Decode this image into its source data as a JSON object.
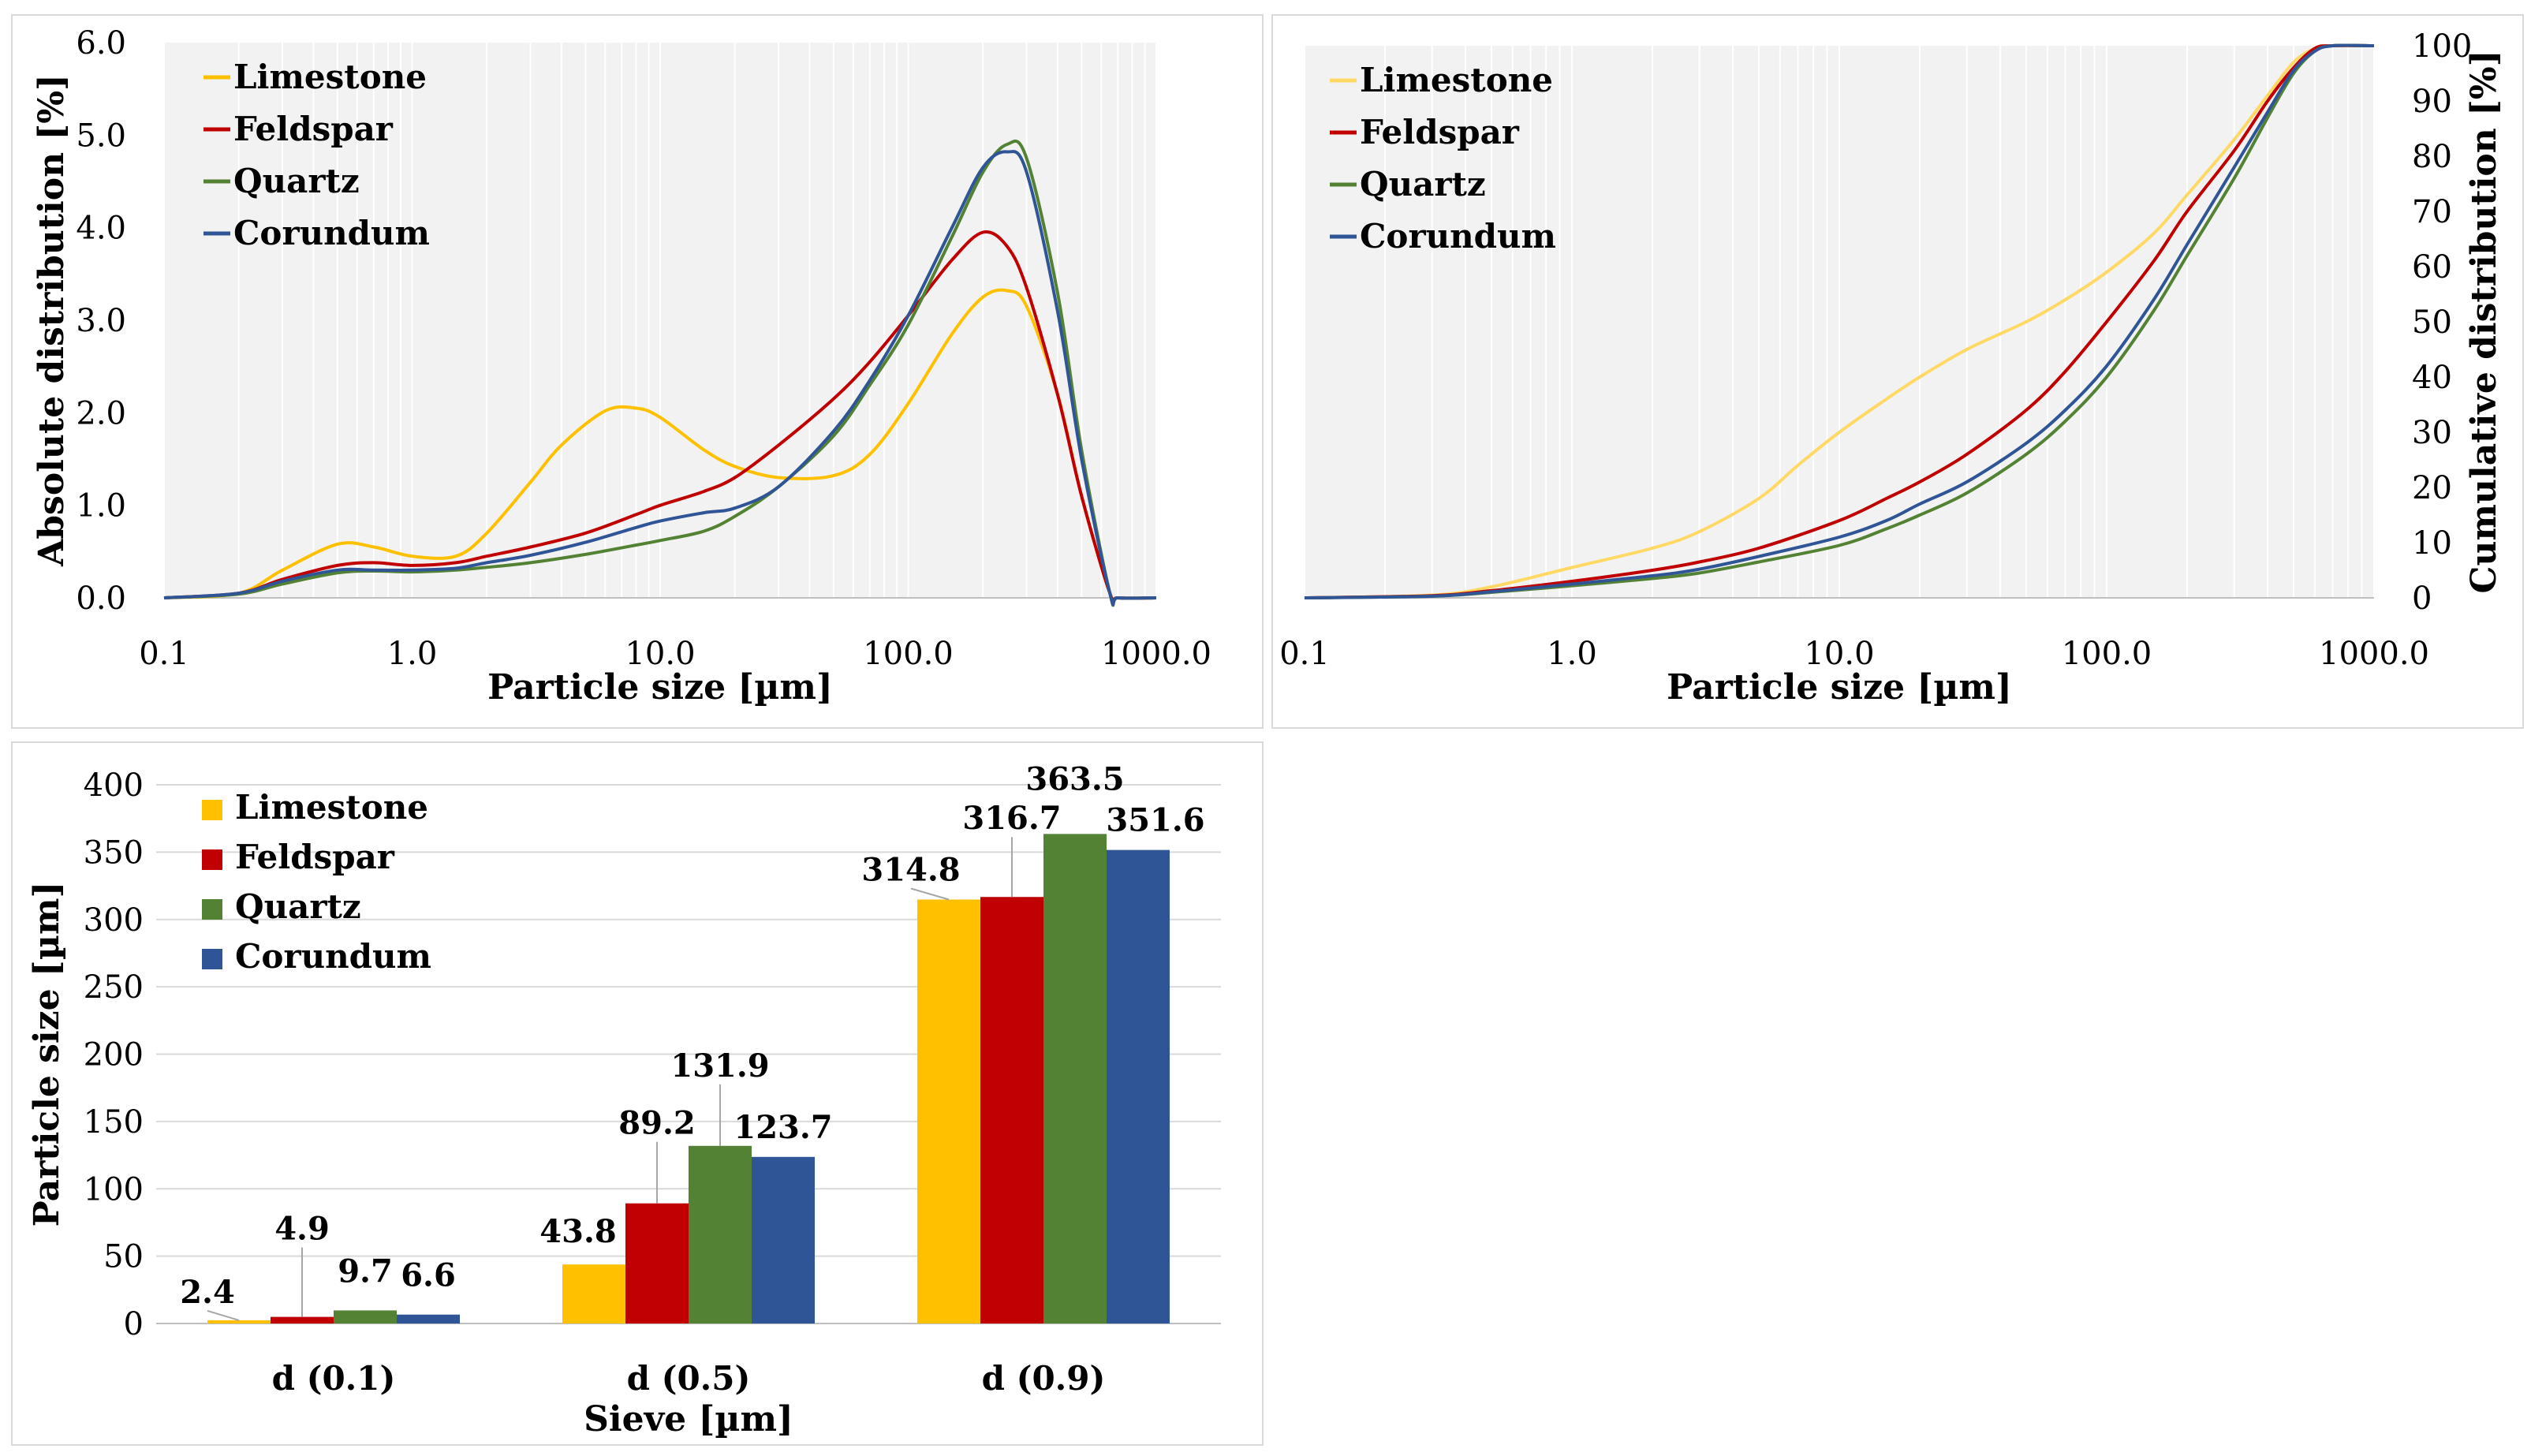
{
  "chart_data": [
    {
      "type": "line",
      "xscale": "log",
      "xlabel": "Particle size [µm]",
      "ylabel": "Absolute distribution [%]",
      "xlim": [
        0.1,
        1000.0
      ],
      "ylim": [
        0.0,
        6.0
      ],
      "x_ticks": [
        "0.1",
        "1.0",
        "10.0",
        "100.0",
        "1000.0"
      ],
      "y_ticks": [
        "0.0",
        "1.0",
        "2.0",
        "3.0",
        "4.0",
        "5.0",
        "6.0"
      ],
      "grid": "vertical",
      "legend_position": "top-left",
      "series": [
        {
          "name": "Limestone",
          "color": "#FFC000",
          "points": [
            [
              0.1,
              0
            ],
            [
              0.2,
              0.05
            ],
            [
              0.3,
              0.3
            ],
            [
              0.5,
              0.58
            ],
            [
              0.7,
              0.55
            ],
            [
              1.0,
              0.45
            ],
            [
              1.5,
              0.45
            ],
            [
              2.0,
              0.7
            ],
            [
              3.0,
              1.25
            ],
            [
              4.0,
              1.65
            ],
            [
              6.0,
              2.02
            ],
            [
              8.0,
              2.05
            ],
            [
              10.0,
              1.95
            ],
            [
              15.0,
              1.6
            ],
            [
              20.0,
              1.42
            ],
            [
              30.0,
              1.3
            ],
            [
              50.0,
              1.32
            ],
            [
              70.0,
              1.55
            ],
            [
              100.0,
              2.1
            ],
            [
              150.0,
              2.85
            ],
            [
              200.0,
              3.25
            ],
            [
              250.0,
              3.32
            ],
            [
              300.0,
              3.15
            ],
            [
              400.0,
              2.2
            ],
            [
              500.0,
              1.1
            ],
            [
              650.0,
              0.05
            ],
            [
              700.0,
              0
            ],
            [
              1000.0,
              0
            ]
          ]
        },
        {
          "name": "Feldspar",
          "color": "#C00000",
          "points": [
            [
              0.1,
              0
            ],
            [
              0.2,
              0.05
            ],
            [
              0.3,
              0.2
            ],
            [
              0.5,
              0.35
            ],
            [
              0.7,
              0.38
            ],
            [
              1.0,
              0.35
            ],
            [
              1.5,
              0.38
            ],
            [
              2.0,
              0.45
            ],
            [
              3.0,
              0.55
            ],
            [
              5.0,
              0.7
            ],
            [
              8.0,
              0.9
            ],
            [
              10.0,
              1.0
            ],
            [
              15.0,
              1.15
            ],
            [
              20.0,
              1.3
            ],
            [
              30.0,
              1.65
            ],
            [
              50.0,
              2.15
            ],
            [
              70.0,
              2.55
            ],
            [
              100.0,
              3.05
            ],
            [
              150.0,
              3.65
            ],
            [
              200.0,
              3.95
            ],
            [
              250.0,
              3.8
            ],
            [
              300.0,
              3.35
            ],
            [
              400.0,
              2.2
            ],
            [
              500.0,
              1.1
            ],
            [
              650.0,
              0.05
            ],
            [
              700.0,
              0
            ],
            [
              1000.0,
              0
            ]
          ]
        },
        {
          "name": "Quartz",
          "color": "#548235",
          "points": [
            [
              0.1,
              0
            ],
            [
              0.2,
              0.04
            ],
            [
              0.3,
              0.15
            ],
            [
              0.5,
              0.27
            ],
            [
              0.7,
              0.29
            ],
            [
              1.0,
              0.28
            ],
            [
              1.5,
              0.3
            ],
            [
              2.0,
              0.33
            ],
            [
              3.0,
              0.38
            ],
            [
              5.0,
              0.47
            ],
            [
              8.0,
              0.57
            ],
            [
              10.0,
              0.62
            ],
            [
              15.0,
              0.72
            ],
            [
              20.0,
              0.88
            ],
            [
              30.0,
              1.2
            ],
            [
              50.0,
              1.75
            ],
            [
              70.0,
              2.3
            ],
            [
              100.0,
              2.95
            ],
            [
              150.0,
              3.9
            ],
            [
              200.0,
              4.6
            ],
            [
              250.0,
              4.9
            ],
            [
              300.0,
              4.75
            ],
            [
              400.0,
              3.3
            ],
            [
              500.0,
              1.6
            ],
            [
              650.0,
              0.05
            ],
            [
              700.0,
              0
            ],
            [
              1000.0,
              0
            ]
          ]
        },
        {
          "name": "Corundum",
          "color": "#2F5597",
          "points": [
            [
              0.1,
              0
            ],
            [
              0.2,
              0.05
            ],
            [
              0.3,
              0.18
            ],
            [
              0.5,
              0.3
            ],
            [
              0.7,
              0.3
            ],
            [
              1.0,
              0.3
            ],
            [
              1.5,
              0.32
            ],
            [
              2.0,
              0.38
            ],
            [
              3.0,
              0.46
            ],
            [
              5.0,
              0.6
            ],
            [
              8.0,
              0.76
            ],
            [
              10.0,
              0.83
            ],
            [
              15.0,
              0.92
            ],
            [
              20.0,
              0.97
            ],
            [
              30.0,
              1.2
            ],
            [
              50.0,
              1.8
            ],
            [
              70.0,
              2.35
            ],
            [
              100.0,
              3.05
            ],
            [
              150.0,
              4.0
            ],
            [
              200.0,
              4.65
            ],
            [
              250.0,
              4.82
            ],
            [
              300.0,
              4.6
            ],
            [
              400.0,
              3.1
            ],
            [
              500.0,
              1.5
            ],
            [
              650.0,
              0.05
            ],
            [
              700.0,
              0
            ],
            [
              1000.0,
              0
            ]
          ]
        }
      ]
    },
    {
      "type": "line",
      "xscale": "log",
      "xlabel": "Particle size [µm]",
      "ylabel": "Cumulative distribution [%]",
      "xlim": [
        0.1,
        1000.0
      ],
      "ylim": [
        0,
        100
      ],
      "y_axis_side": "right",
      "x_ticks": [
        "0.1",
        "1.0",
        "10.0",
        "100.0",
        "1000.0"
      ],
      "y_ticks": [
        "0",
        "10",
        "20",
        "30",
        "40",
        "50",
        "60",
        "70",
        "80",
        "90",
        "100"
      ],
      "grid": "vertical",
      "legend_position": "top-left",
      "series": [
        {
          "name": "Limestone",
          "color": "#FFD966",
          "points": [
            [
              0.1,
              0
            ],
            [
              0.3,
              0.5
            ],
            [
              0.5,
              2
            ],
            [
              1.0,
              5.5
            ],
            [
              2.0,
              9
            ],
            [
              3.0,
              12
            ],
            [
              5.0,
              18
            ],
            [
              7.0,
              24
            ],
            [
              10.0,
              30
            ],
            [
              15.0,
              36
            ],
            [
              20.0,
              40
            ],
            [
              30.0,
              45
            ],
            [
              50.0,
              50
            ],
            [
              70.0,
              54
            ],
            [
              100.0,
              59
            ],
            [
              150.0,
              66
            ],
            [
              200.0,
              73
            ],
            [
              300.0,
              83
            ],
            [
              400.0,
              91
            ],
            [
              500.0,
              97
            ],
            [
              600.0,
              99.5
            ],
            [
              700.0,
              100
            ],
            [
              1000.0,
              100
            ]
          ]
        },
        {
          "name": "Feldspar",
          "color": "#C00000",
          "points": [
            [
              0.1,
              0
            ],
            [
              0.3,
              0.4
            ],
            [
              0.5,
              1.3
            ],
            [
              1.0,
              3
            ],
            [
              2.0,
              5
            ],
            [
              3.0,
              6.5
            ],
            [
              5.0,
              9
            ],
            [
              10.0,
              14
            ],
            [
              15.0,
              18
            ],
            [
              20.0,
              21
            ],
            [
              30.0,
              26
            ],
            [
              50.0,
              34
            ],
            [
              70.0,
              41
            ],
            [
              100.0,
              50
            ],
            [
              150.0,
              61
            ],
            [
              200.0,
              70
            ],
            [
              300.0,
              81
            ],
            [
              400.0,
              90
            ],
            [
              500.0,
              96
            ],
            [
              600.0,
              99.5
            ],
            [
              700.0,
              100
            ],
            [
              1000.0,
              100
            ]
          ]
        },
        {
          "name": "Quartz",
          "color": "#548235",
          "points": [
            [
              0.1,
              0
            ],
            [
              0.3,
              0.3
            ],
            [
              0.5,
              1
            ],
            [
              1.0,
              2.2
            ],
            [
              2.0,
              3.5
            ],
            [
              3.0,
              4.5
            ],
            [
              5.0,
              6.5
            ],
            [
              10.0,
              9.5
            ],
            [
              15.0,
              12.5
            ],
            [
              20.0,
              15
            ],
            [
              30.0,
              19
            ],
            [
              50.0,
              26
            ],
            [
              70.0,
              32
            ],
            [
              100.0,
              40
            ],
            [
              150.0,
              52
            ],
            [
              200.0,
              62
            ],
            [
              300.0,
              76
            ],
            [
              400.0,
              87
            ],
            [
              500.0,
              95
            ],
            [
              600.0,
              99
            ],
            [
              700.0,
              100
            ],
            [
              1000.0,
              100
            ]
          ]
        },
        {
          "name": "Corundum",
          "color": "#2F5597",
          "points": [
            [
              0.1,
              0
            ],
            [
              0.3,
              0.3
            ],
            [
              0.5,
              1.1
            ],
            [
              1.0,
              2.5
            ],
            [
              2.0,
              4
            ],
            [
              3.0,
              5.2
            ],
            [
              5.0,
              7.5
            ],
            [
              10.0,
              11
            ],
            [
              15.0,
              14
            ],
            [
              20.0,
              17
            ],
            [
              30.0,
              21
            ],
            [
              50.0,
              28
            ],
            [
              70.0,
              34
            ],
            [
              100.0,
              42
            ],
            [
              150.0,
              54
            ],
            [
              200.0,
              64
            ],
            [
              300.0,
              78
            ],
            [
              400.0,
              88
            ],
            [
              500.0,
              95.5
            ],
            [
              600.0,
              99
            ],
            [
              700.0,
              100
            ],
            [
              1000.0,
              100
            ]
          ]
        }
      ]
    },
    {
      "type": "bar",
      "xlabel": "Sieve [µm]",
      "ylabel": "Particle size [µm]",
      "ylim": [
        0,
        400
      ],
      "y_ticks": [
        "0",
        "50",
        "100",
        "150",
        "200",
        "250",
        "300",
        "350",
        "400"
      ],
      "grid": "horizontal",
      "legend_position": "top-left",
      "categories": [
        "d (0.1)",
        "d (0.5)",
        "d (0.9)"
      ],
      "series": [
        {
          "name": "Limestone",
          "color": "#FFC000",
          "values": [
            2.4,
            43.8,
            314.8
          ],
          "labels": [
            "2.4",
            "43.8",
            "314.8"
          ]
        },
        {
          "name": "Feldspar",
          "color": "#C00000",
          "values": [
            4.9,
            89.2,
            316.7
          ],
          "labels": [
            "4.9",
            "89.2",
            "316.7"
          ]
        },
        {
          "name": "Quartz",
          "color": "#548235",
          "values": [
            9.7,
            131.9,
            363.5
          ],
          "labels": [
            "9.7",
            "131.9",
            "363.5"
          ]
        },
        {
          "name": "Corundum",
          "color": "#2F5597",
          "values": [
            6.6,
            123.7,
            351.6
          ],
          "labels": [
            "6.6",
            "123.7",
            "351.6"
          ]
        }
      ]
    }
  ]
}
